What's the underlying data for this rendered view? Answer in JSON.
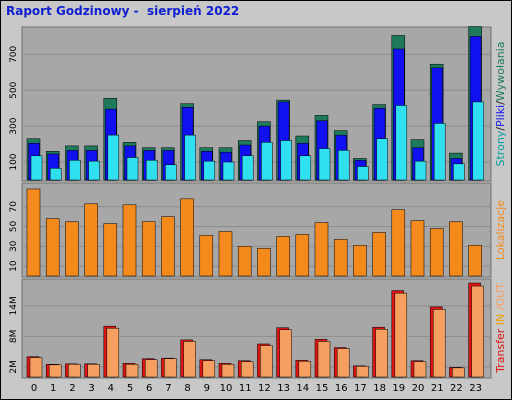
{
  "title": "Raport Godzinowy -  sierpień 2022",
  "colors": {
    "background": "#c8c8c8",
    "panel": "#a7a7a7",
    "strony": "#1e7a5a",
    "pliki": "#1010f0",
    "wywolania": "#30e0f0",
    "lokalizacje": "#f58a1c",
    "transfer_in": "#e01414",
    "transfer_out": "#f5a060",
    "title": "#1020d0"
  },
  "side_labels": {
    "panel1": [
      {
        "text": "Strony",
        "color": "#00a0a0"
      },
      {
        "text": "/",
        "color": "#202020"
      },
      {
        "text": "Pliki",
        "color": "#1010f0"
      },
      {
        "text": "/",
        "color": "#202020"
      },
      {
        "text": "Wywołania",
        "color": "#1e7a5a"
      }
    ],
    "panel2": [
      {
        "text": "Lokalizacje",
        "color": "#f58a1c"
      }
    ],
    "panel3": [
      {
        "text": "Transfer",
        "color": "#e01414"
      },
      {
        "text": " IN",
        "color": "#f0a000"
      },
      {
        "text": " /OUT",
        "color": "#f5a060"
      }
    ]
  },
  "chart_data": [
    {
      "type": "bar",
      "name": "hits",
      "categories": [
        "0",
        "1",
        "2",
        "3",
        "4",
        "5",
        "6",
        "7",
        "8",
        "9",
        "10",
        "11",
        "12",
        "13",
        "14",
        "15",
        "16",
        "17",
        "18",
        "19",
        "20",
        "21",
        "22",
        "23"
      ],
      "yticks": [
        100,
        300,
        500,
        700
      ],
      "ylim": [
        0,
        830
      ],
      "series": [
        {
          "name": "Wywołania",
          "values": [
            230,
            160,
            190,
            190,
            455,
            210,
            180,
            180,
            425,
            180,
            180,
            220,
            325,
            445,
            245,
            360,
            275,
            120,
            420,
            805,
            225,
            645,
            150,
            855
          ]
        },
        {
          "name": "Pliki",
          "values": [
            205,
            145,
            165,
            165,
            395,
            190,
            165,
            165,
            405,
            160,
            155,
            195,
            300,
            435,
            205,
            330,
            250,
            110,
            400,
            730,
            180,
            625,
            120,
            800
          ]
        },
        {
          "name": "Strony",
          "values": [
            135,
            65,
            110,
            105,
            250,
            125,
            110,
            85,
            250,
            105,
            100,
            135,
            210,
            220,
            135,
            175,
            165,
            75,
            230,
            415,
            105,
            315,
            90,
            435
          ]
        }
      ]
    },
    {
      "type": "bar",
      "name": "visits",
      "categories": [
        "0",
        "1",
        "2",
        "3",
        "4",
        "5",
        "6",
        "7",
        "8",
        "9",
        "10",
        "11",
        "12",
        "13",
        "14",
        "15",
        "16",
        "17",
        "18",
        "19",
        "20",
        "21",
        "22",
        "23"
      ],
      "yticks": [
        10,
        30,
        50,
        70
      ],
      "ylim": [
        0,
        90
      ],
      "series": [
        {
          "name": "Lokalizacje",
          "values": [
            88,
            58,
            55,
            73,
            53,
            72,
            55,
            60,
            78,
            41,
            45,
            30,
            28,
            40,
            42,
            54,
            37,
            31,
            44,
            67,
            56,
            48,
            55,
            31
          ]
        }
      ]
    },
    {
      "type": "bar",
      "name": "transfer",
      "categories": [
        "0",
        "1",
        "2",
        "3",
        "4",
        "5",
        "6",
        "7",
        "8",
        "9",
        "10",
        "11",
        "12",
        "13",
        "14",
        "15",
        "16",
        "17",
        "18",
        "19",
        "20",
        "21",
        "22",
        "23"
      ],
      "yticks": [
        "2M",
        "8M",
        "14M"
      ],
      "ytick_values": [
        2,
        8,
        14
      ],
      "ylim": [
        0,
        18.5
      ],
      "series": [
        {
          "name": "IN",
          "values": [
            4.0,
            2.5,
            2.6,
            2.6,
            10.0,
            2.7,
            3.6,
            3.7,
            7.3,
            3.4,
            2.7,
            3.2,
            6.5,
            9.7,
            3.3,
            7.4,
            5.8,
            2.2,
            9.8,
            17.0,
            3.2,
            13.8,
            1.9,
            18.5
          ]
        },
        {
          "name": "OUT",
          "values": [
            3.8,
            2.4,
            2.5,
            2.5,
            9.6,
            2.5,
            3.4,
            3.6,
            7.0,
            3.2,
            2.5,
            3.0,
            6.2,
            9.3,
            3.1,
            7.0,
            5.6,
            2.1,
            9.4,
            16.5,
            3.0,
            13.3,
            1.8,
            17.9
          ]
        }
      ]
    }
  ]
}
